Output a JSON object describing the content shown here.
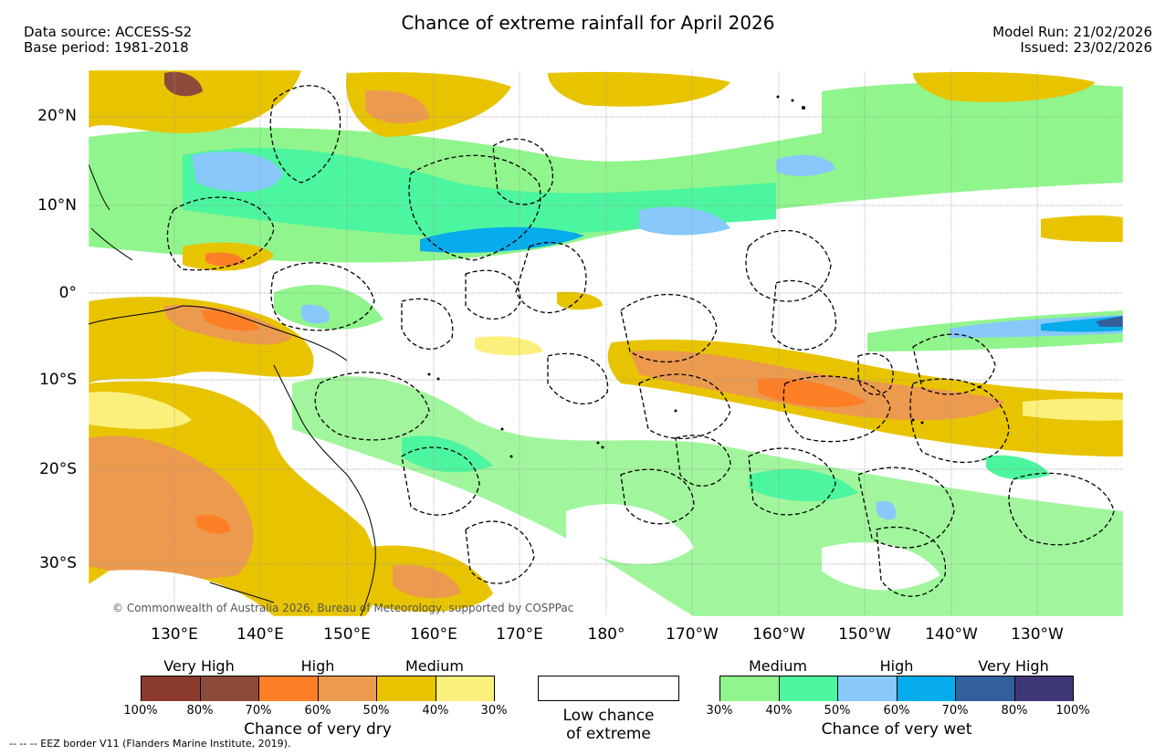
{
  "header": {
    "title": "Chance of extreme rainfall for April 2026",
    "data_source": "Data source: ACCESS-S2",
    "base_period": "Base period: 1981-2018",
    "model_run": "Model Run: 21/02/2026",
    "issued": "Issued: 23/02/2026"
  },
  "map": {
    "lat_labels": [
      "20°N",
      "10°N",
      "0°",
      "10°S",
      "20°S",
      "30°S"
    ],
    "lon_labels": [
      "130°E",
      "140°E",
      "150°E",
      "160°E",
      "170°E",
      "180°",
      "170°W",
      "160°W",
      "150°W",
      "140°W",
      "130°W"
    ],
    "copyright": "© Commonwealth of Australia 2026, Bureau of Meteorology, supported by COSPPac"
  },
  "legend": {
    "dry": {
      "categories": [
        "Very High",
        "High",
        "Medium"
      ],
      "colors": [
        "#8b3a2e",
        "#8c4b3a",
        "#ff7f27",
        "#ec9a4e",
        "#e8c400",
        "#fcf07c"
      ],
      "ticks": [
        "100%",
        "80%",
        "70%",
        "60%",
        "50%",
        "40%",
        "30%"
      ],
      "caption": "Chance of very dry"
    },
    "neutral": {
      "line1": "Low chance",
      "line2": "of extreme",
      "color": "#ffffff"
    },
    "wet": {
      "categories": [
        "Medium",
        "High",
        "Very High"
      ],
      "colors": [
        "#90f58c",
        "#4cf59f",
        "#88c8fb",
        "#06acec",
        "#33609c",
        "#3e3878"
      ],
      "ticks": [
        "30%",
        "40%",
        "50%",
        "60%",
        "70%",
        "80%",
        "100%"
      ],
      "caption": "Chance of very wet"
    }
  },
  "footer": "--  --  -- EEZ border V11 (Flanders Marine Institute, 2019)."
}
